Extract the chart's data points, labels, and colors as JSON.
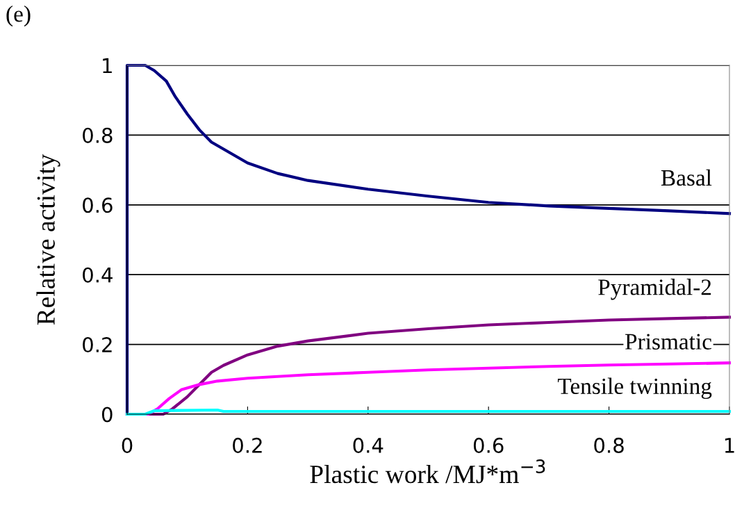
{
  "chart_data": {
    "type": "line",
    "title": "(e)",
    "xlabel": "Plastic work /MJ*m$^{−3}$",
    "ylabel": "Relative activity",
    "xlim": [
      0,
      1
    ],
    "ylim": [
      0,
      1
    ],
    "xticks": [
      0,
      0.2,
      0.4,
      0.6,
      0.8,
      1
    ],
    "yticks": [
      0,
      0.2,
      0.4,
      0.6,
      0.8,
      1
    ],
    "grid": "y",
    "legend": false,
    "line_style": "solid",
    "marker": "none",
    "series": [
      {
        "name": "Basal",
        "color": "#000080",
        "x": [
          0,
          0,
          0.03,
          0.045,
          0.065,
          0.08,
          0.1,
          0.12,
          0.14,
          0.17,
          0.2,
          0.25,
          0.3,
          0.4,
          0.5,
          0.6,
          0.7,
          0.8,
          0.9,
          1
        ],
        "values": [
          0,
          1,
          1,
          0.985,
          0.955,
          0.91,
          0.86,
          0.815,
          0.78,
          0.75,
          0.72,
          0.69,
          0.67,
          0.645,
          0.625,
          0.607,
          0.597,
          0.59,
          0.583,
          0.575
        ]
      },
      {
        "name": "Pyramidal-2",
        "color": "#800080",
        "x": [
          0,
          0.06,
          0.075,
          0.1,
          0.12,
          0.14,
          0.16,
          0.2,
          0.25,
          0.3,
          0.4,
          0.5,
          0.6,
          0.7,
          0.8,
          0.9,
          1
        ],
        "values": [
          0,
          0,
          0.015,
          0.05,
          0.085,
          0.12,
          0.14,
          0.17,
          0.195,
          0.21,
          0.232,
          0.245,
          0.256,
          0.263,
          0.27,
          0.274,
          0.278
        ]
      },
      {
        "name": "Prismatic",
        "color": "#ff00ff",
        "x": [
          0,
          0.035,
          0.05,
          0.07,
          0.09,
          0.12,
          0.15,
          0.2,
          0.3,
          0.4,
          0.5,
          0.6,
          0.7,
          0.8,
          0.9,
          1
        ],
        "values": [
          0,
          0,
          0.015,
          0.045,
          0.07,
          0.085,
          0.095,
          0.103,
          0.113,
          0.12,
          0.127,
          0.132,
          0.137,
          0.141,
          0.144,
          0.147
        ]
      },
      {
        "name": "Tensile twinning",
        "color": "#00ffff",
        "x": [
          0,
          0.03,
          0.045,
          0.15,
          0.16,
          1
        ],
        "values": [
          0,
          0,
          0.01,
          0.012,
          0.008,
          0.008
        ]
      }
    ]
  }
}
